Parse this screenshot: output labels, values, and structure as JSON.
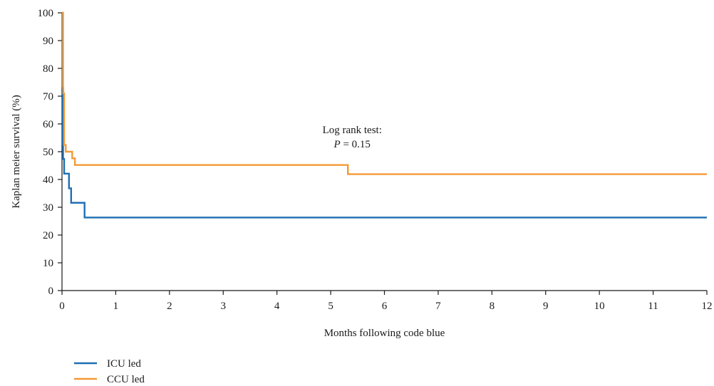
{
  "chart_data": {
    "type": "line",
    "step": true,
    "title": "",
    "xlabel": "Months following code blue",
    "ylabel": "Kaplan meier survival (%)",
    "xlim": [
      0,
      12
    ],
    "ylim": [
      0,
      100
    ],
    "xticks": [
      0,
      1,
      2,
      3,
      4,
      5,
      6,
      7,
      8,
      9,
      10,
      11,
      12
    ],
    "yticks": [
      0,
      10,
      20,
      30,
      40,
      50,
      60,
      70,
      80,
      90,
      100
    ],
    "grid": false,
    "legend_position": "bottom-left",
    "annotation": {
      "line1": "Log rank test:",
      "line2_italic": "P",
      "line2_rest": " = 0.15",
      "x": 5.4,
      "y": 51.5
    },
    "series": [
      {
        "name": "ICU led",
        "color": "#1f6fb4",
        "points": [
          [
            0,
            100
          ],
          [
            0.01,
            73.7
          ],
          [
            0.015,
            52.6
          ],
          [
            0.02,
            47.4
          ],
          [
            0.04,
            42.1
          ],
          [
            0.13,
            36.8
          ],
          [
            0.17,
            31.6
          ],
          [
            0.42,
            26.3
          ],
          [
            12,
            26.3
          ]
        ]
      },
      {
        "name": "CCU led",
        "color": "#f39a36",
        "points": [
          [
            0,
            100
          ],
          [
            0.02,
            73
          ],
          [
            0.025,
            71
          ],
          [
            0.04,
            52.4
          ],
          [
            0.07,
            50
          ],
          [
            0.19,
            47.6
          ],
          [
            0.24,
            45.2
          ],
          [
            5.32,
            41.9
          ],
          [
            12,
            41.9
          ]
        ]
      }
    ]
  }
}
